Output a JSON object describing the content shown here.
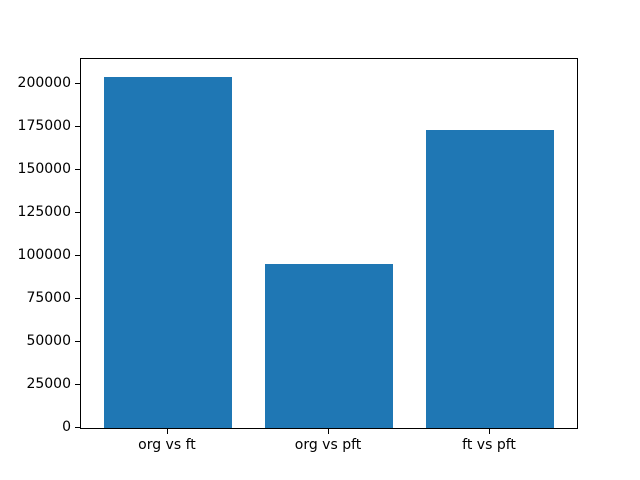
{
  "chart_data": {
    "type": "bar",
    "categories": [
      "org vs ft",
      "org vs pft",
      "ft vs pft"
    ],
    "values": [
      204000,
      95000,
      173000
    ],
    "title": "",
    "xlabel": "",
    "ylabel": "",
    "ylim": [
      0,
      214300
    ],
    "yticks": [
      0,
      25000,
      50000,
      75000,
      100000,
      125000,
      150000,
      175000,
      200000
    ],
    "bar_color": "#1f77b4",
    "axis_color": "#000000",
    "background_color": "#ffffff",
    "grid": false,
    "legend": null
  }
}
